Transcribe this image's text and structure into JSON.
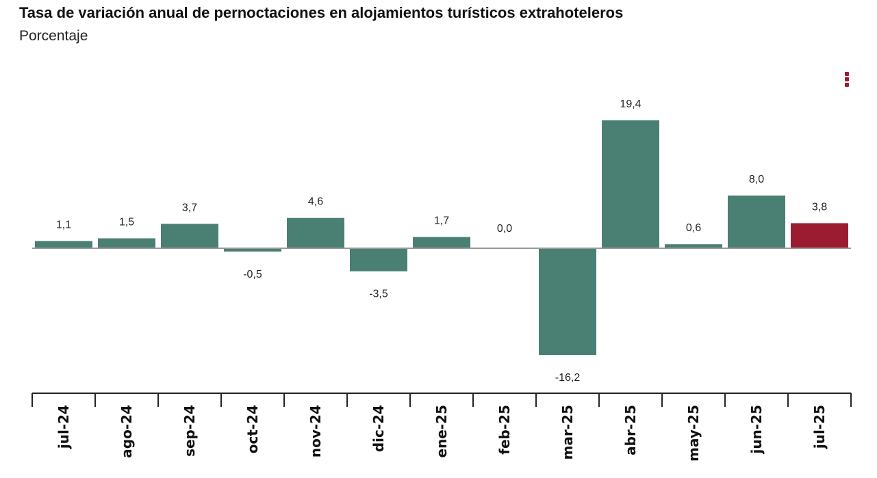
{
  "header": {
    "title": "Tasa de variación anual de pernoctaciones en alojamientos turísticos extrahoteleros",
    "subtitle": "Porcentaje"
  },
  "colors": {
    "bar": "#4a7f74",
    "highlight": "#9b1b30",
    "baseline": "#9a9a9a",
    "axis": "#222222"
  },
  "menu": {
    "icon": "vertical-dots-icon"
  },
  "chart_data": {
    "type": "bar",
    "title": "Tasa de variación anual de pernoctaciones en alojamientos turísticos extrahoteleros",
    "subtitle": "Porcentaje",
    "categories": [
      "jul-24",
      "ago-24",
      "sep-24",
      "oct-24",
      "nov-24",
      "dic-24",
      "ene-25",
      "feb-25",
      "mar-25",
      "abr-25",
      "may-25",
      "jun-25",
      "jul-25"
    ],
    "values": [
      1.1,
      1.5,
      3.7,
      -0.5,
      4.6,
      -3.5,
      1.7,
      0.0,
      -16.2,
      19.4,
      0.6,
      8.0,
      3.8
    ],
    "value_labels": [
      "1,1",
      "1,5",
      "3,7",
      "-0,5",
      "4,6",
      "-3,5",
      "1,7",
      "0,0",
      "-16,2",
      "19,4",
      "0,6",
      "8,0",
      "3,8"
    ],
    "highlight_index": 12,
    "ylim": [
      -16.2,
      19.4
    ],
    "grid": false,
    "legend": "none",
    "xlabel": "",
    "ylabel": ""
  }
}
